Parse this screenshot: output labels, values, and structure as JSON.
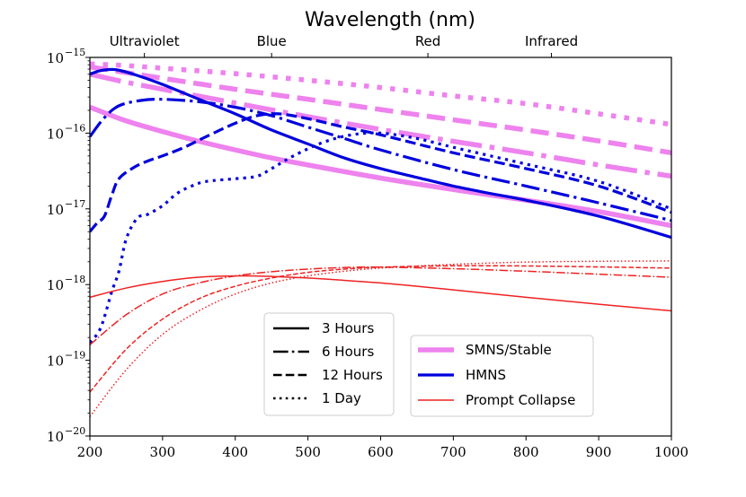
{
  "chart_data": {
    "type": "line",
    "title": "Wavelength (nm)",
    "xlabel": "",
    "ylabel": "",
    "xlim": [
      200,
      1000
    ],
    "ylim_log10": [
      -20,
      -15
    ],
    "x_ticks": [
      200,
      300,
      400,
      500,
      600,
      700,
      800,
      900,
      1000
    ],
    "x_tick_labels": [
      "200",
      "300",
      "400",
      "500",
      "600",
      "700",
      "800",
      "900",
      "1000"
    ],
    "y_ticks_log10": [
      -20,
      -19,
      -18,
      -17,
      -16,
      -15
    ],
    "y_tick_base": "10",
    "y_tick_exponents": [
      "−20",
      "−19",
      "−18",
      "−17",
      "−16",
      "−15"
    ],
    "top_axis_bands": [
      {
        "label": "Ultraviolet",
        "x": 275
      },
      {
        "label": "Blue",
        "x": 450
      },
      {
        "label": "Red",
        "x": 665
      },
      {
        "label": "Infrared",
        "x": 835
      }
    ],
    "models": [
      {
        "name": "SMNS/Stable",
        "color": "#ee82ee"
      },
      {
        "name": "HMNS",
        "color": "#0000dd"
      },
      {
        "name": "Prompt Collapse",
        "color": "#ee2222"
      }
    ],
    "times": [
      "3 Hours",
      "6 Hours",
      "12 Hours",
      "1 Day"
    ],
    "series": [
      {
        "model": "SMNS/Stable",
        "time": "3 Hours",
        "points": [
          [
            200,
            2.2e-16
          ],
          [
            250,
            1.45e-16
          ],
          [
            300,
            1.05e-16
          ],
          [
            350,
            7.8e-17
          ],
          [
            400,
            6e-17
          ],
          [
            450,
            4.7e-17
          ],
          [
            500,
            3.8e-17
          ],
          [
            600,
            2.55e-17
          ],
          [
            700,
            1.8e-17
          ],
          [
            800,
            1.3e-17
          ],
          [
            900,
            9.2e-18
          ],
          [
            1000,
            6e-18
          ]
        ]
      },
      {
        "model": "SMNS/Stable",
        "time": "6 Hours",
        "points": [
          [
            200,
            6e-16
          ],
          [
            250,
            4.7e-16
          ],
          [
            300,
            3.8e-16
          ],
          [
            400,
            2.5e-16
          ],
          [
            500,
            1.65e-16
          ],
          [
            600,
            1.12e-16
          ],
          [
            700,
            7.8e-17
          ],
          [
            800,
            5.5e-17
          ],
          [
            900,
            3.8e-17
          ],
          [
            1000,
            2.7e-17
          ]
        ]
      },
      {
        "model": "SMNS/Stable",
        "time": "12 Hours",
        "points": [
          [
            200,
            7.5e-16
          ],
          [
            250,
            6.3e-16
          ],
          [
            300,
            5.3e-16
          ],
          [
            400,
            3.8e-16
          ],
          [
            500,
            2.8e-16
          ],
          [
            600,
            2.05e-16
          ],
          [
            700,
            1.5e-16
          ],
          [
            800,
            1.1e-16
          ],
          [
            900,
            7.9e-17
          ],
          [
            1000,
            5.5e-17
          ]
        ]
      },
      {
        "model": "SMNS/Stable",
        "time": "1 Day",
        "points": [
          [
            200,
            8.2e-16
          ],
          [
            250,
            7.8e-16
          ],
          [
            300,
            7.2e-16
          ],
          [
            400,
            6.1e-16
          ],
          [
            500,
            5e-16
          ],
          [
            600,
            4e-16
          ],
          [
            700,
            3.1e-16
          ],
          [
            800,
            2.45e-16
          ],
          [
            900,
            1.8e-16
          ],
          [
            1000,
            1.3e-16
          ]
        ]
      },
      {
        "model": "HMNS",
        "time": "3 Hours",
        "points": [
          [
            200,
            6e-16
          ],
          [
            215,
            6.7e-16
          ],
          [
            235,
            6.9e-16
          ],
          [
            260,
            6e-16
          ],
          [
            300,
            4.4e-16
          ],
          [
            350,
            2.8e-16
          ],
          [
            400,
            1.8e-16
          ],
          [
            450,
            1.1e-16
          ],
          [
            500,
            7.2e-17
          ],
          [
            550,
            4.7e-17
          ],
          [
            600,
            3.4e-17
          ],
          [
            650,
            2.6e-17
          ],
          [
            700,
            2e-17
          ],
          [
            750,
            1.6e-17
          ],
          [
            800,
            1.3e-17
          ],
          [
            900,
            8e-18
          ],
          [
            1000,
            4.2e-18
          ]
        ]
      },
      {
        "model": "HMNS",
        "time": "6 Hours",
        "points": [
          [
            200,
            9e-17
          ],
          [
            220,
            1.6e-16
          ],
          [
            240,
            2.3e-16
          ],
          [
            270,
            2.7e-16
          ],
          [
            300,
            2.8e-16
          ],
          [
            350,
            2.6e-16
          ],
          [
            400,
            2.2e-16
          ],
          [
            450,
            1.7e-16
          ],
          [
            500,
            1.2e-16
          ],
          [
            550,
            8.5e-17
          ],
          [
            600,
            6e-17
          ],
          [
            700,
            3.3e-17
          ],
          [
            800,
            2e-17
          ],
          [
            900,
            1.2e-17
          ],
          [
            1000,
            7e-18
          ]
        ]
      },
      {
        "model": "HMNS",
        "time": "12 Hours",
        "points": [
          [
            200,
            5e-18
          ],
          [
            210,
            6.5e-18
          ],
          [
            220,
            8e-18
          ],
          [
            230,
            1.5e-17
          ],
          [
            240,
            2.5e-17
          ],
          [
            260,
            3.5e-17
          ],
          [
            280,
            4.3e-17
          ],
          [
            300,
            5e-17
          ],
          [
            330,
            6.5e-17
          ],
          [
            360,
            9e-17
          ],
          [
            400,
            1.35e-16
          ],
          [
            430,
            1.7e-16
          ],
          [
            460,
            1.8e-16
          ],
          [
            500,
            1.55e-16
          ],
          [
            550,
            1.2e-16
          ],
          [
            600,
            9.5e-17
          ],
          [
            700,
            5.5e-17
          ],
          [
            800,
            3.4e-17
          ],
          [
            900,
            2e-17
          ],
          [
            1000,
            9e-18
          ]
        ]
      },
      {
        "model": "HMNS",
        "time": "1 Day",
        "points": [
          [
            200,
            1.7e-19
          ],
          [
            215,
            2.7e-19
          ],
          [
            230,
            8e-19
          ],
          [
            240,
            1.5e-18
          ],
          [
            250,
            4e-18
          ],
          [
            265,
            7.5e-18
          ],
          [
            280,
            8.5e-18
          ],
          [
            300,
            1.1e-17
          ],
          [
            320,
            1.6e-17
          ],
          [
            340,
            2e-17
          ],
          [
            360,
            2.3e-17
          ],
          [
            400,
            2.5e-17
          ],
          [
            430,
            2.7e-17
          ],
          [
            450,
            3.4e-17
          ],
          [
            480,
            5e-17
          ],
          [
            520,
            7.5e-17
          ],
          [
            560,
            9.5e-17
          ],
          [
            600,
            1e-16
          ],
          [
            650,
            8.5e-17
          ],
          [
            700,
            6.5e-17
          ],
          [
            800,
            3.9e-17
          ],
          [
            900,
            2.3e-17
          ],
          [
            1000,
            1e-17
          ]
        ]
      },
      {
        "model": "Prompt Collapse",
        "time": "3 Hours",
        "points": [
          [
            200,
            6.8e-19
          ],
          [
            250,
            9e-19
          ],
          [
            300,
            1.1e-18
          ],
          [
            350,
            1.25e-18
          ],
          [
            400,
            1.3e-18
          ],
          [
            450,
            1.28e-18
          ],
          [
            500,
            1.22e-18
          ],
          [
            600,
            1.05e-18
          ],
          [
            700,
            8.5e-19
          ],
          [
            800,
            6.8e-19
          ],
          [
            900,
            5.5e-19
          ],
          [
            1000,
            4.5e-19
          ]
        ]
      },
      {
        "model": "Prompt Collapse",
        "time": "6 Hours",
        "points": [
          [
            200,
            1.6e-19
          ],
          [
            250,
            4e-19
          ],
          [
            300,
            7.5e-19
          ],
          [
            350,
            1.05e-18
          ],
          [
            400,
            1.3e-18
          ],
          [
            450,
            1.48e-18
          ],
          [
            500,
            1.6e-18
          ],
          [
            550,
            1.68e-18
          ],
          [
            600,
            1.7e-18
          ],
          [
            700,
            1.62e-18
          ],
          [
            800,
            1.5e-18
          ],
          [
            900,
            1.37e-18
          ],
          [
            1000,
            1.25e-18
          ]
        ]
      },
      {
        "model": "Prompt Collapse",
        "time": "12 Hours",
        "points": [
          [
            200,
            3.8e-20
          ],
          [
            250,
            1.4e-19
          ],
          [
            300,
            3.5e-19
          ],
          [
            350,
            6.5e-19
          ],
          [
            400,
            9.5e-19
          ],
          [
            450,
            1.22e-18
          ],
          [
            500,
            1.45e-18
          ],
          [
            550,
            1.6e-18
          ],
          [
            600,
            1.7e-18
          ],
          [
            700,
            1.77e-18
          ],
          [
            800,
            1.76e-18
          ],
          [
            900,
            1.71e-18
          ],
          [
            1000,
            1.65e-18
          ]
        ]
      },
      {
        "model": "Prompt Collapse",
        "time": "1 Day",
        "points": [
          [
            200,
            1.8e-20
          ],
          [
            250,
            7.5e-20
          ],
          [
            300,
            2.2e-19
          ],
          [
            350,
            4.5e-19
          ],
          [
            400,
            7.5e-19
          ],
          [
            450,
            1.05e-18
          ],
          [
            500,
            1.3e-18
          ],
          [
            550,
            1.5e-18
          ],
          [
            600,
            1.65e-18
          ],
          [
            700,
            1.85e-18
          ],
          [
            800,
            1.98e-18
          ],
          [
            900,
            2.03e-18
          ],
          [
            1000,
            2.05e-18
          ]
        ]
      }
    ]
  }
}
